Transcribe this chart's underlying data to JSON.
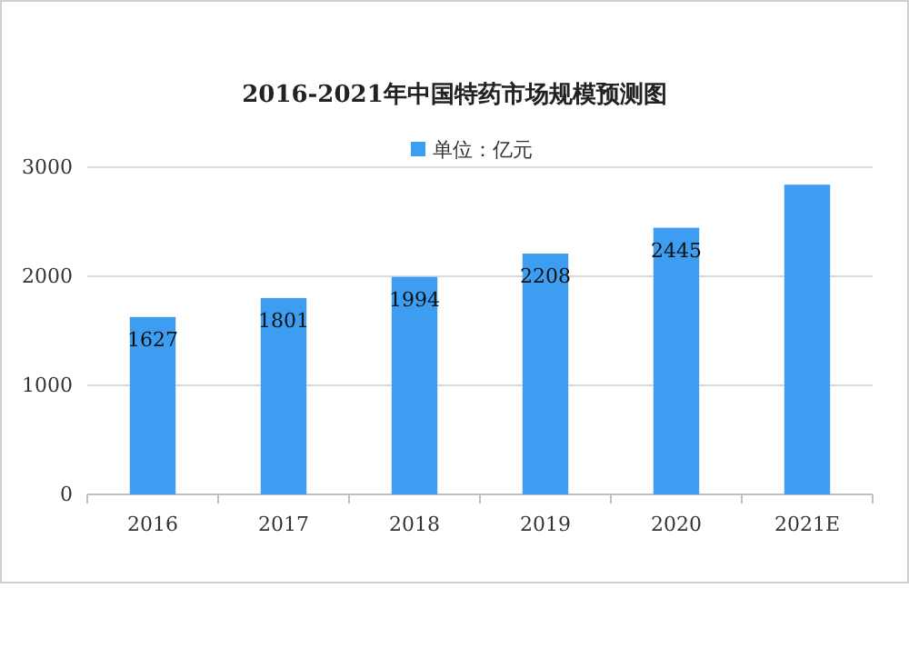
{
  "chart_data": {
    "type": "bar",
    "title": "2016-2021年中国特药市场规模预测图",
    "categories": [
      "2016",
      "2017",
      "2018",
      "2019",
      "2020",
      "2021E"
    ],
    "series": [
      {
        "name": "单位：亿元",
        "color": "#3d9df0",
        "values": [
          1627,
          1801,
          1994,
          2208,
          2445,
          2840
        ]
      }
    ],
    "value_labels": [
      "1627",
      "1801",
      "1994",
      "2208",
      "2445",
      null
    ],
    "ylim": [
      0,
      3000
    ],
    "yticks": [
      0,
      1000,
      2000,
      3000
    ],
    "grid": "y",
    "legend": "top"
  }
}
